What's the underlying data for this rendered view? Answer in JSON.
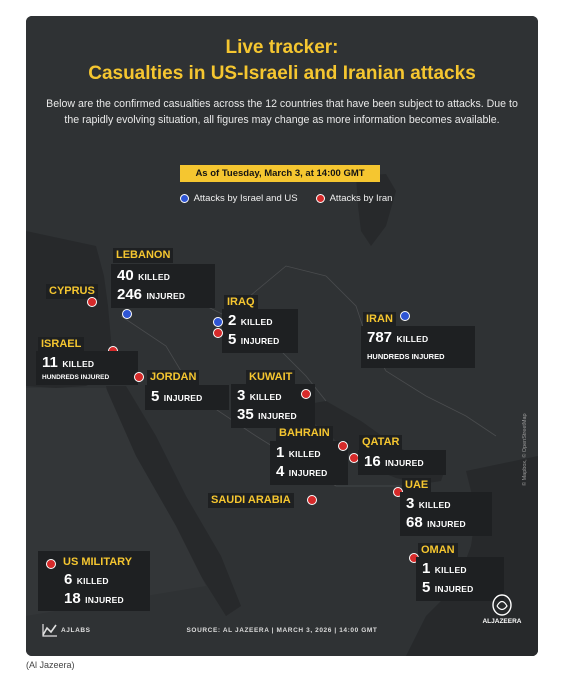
{
  "title_line1": "Live tracker:",
  "title_line2": "Casualties in US-Israeli and Iranian attacks",
  "subtitle": "Below are the confirmed casualties across the 12 countries that have been subject to attacks. Due to the rapidly evolving situation, all figures may change as more information becomes available.",
  "as_of": "As of Tuesday, March 3, at 14:00 GMT",
  "legend": {
    "israel_us": "Attacks by Israel and US",
    "iran": "Attacks by Iran"
  },
  "colors": {
    "israel_us": "#2f55d4",
    "iran": "#d62a2a",
    "accent": "#f5c630"
  },
  "countries": {
    "lebanon": {
      "name": "LEBANON",
      "killed": "40",
      "injured": "246",
      "killed_label": "KILLED",
      "injured_label": "INJURED"
    },
    "cyprus": {
      "name": "CYPRUS"
    },
    "iraq": {
      "name": "IRAQ",
      "killed": "2",
      "injured": "5",
      "killed_label": "KILLED",
      "injured_label": "INJURED"
    },
    "iran": {
      "name": "IRAN",
      "killed": "787",
      "killed_label": "KILLED",
      "injured_text": "HUNDREDS INJURED"
    },
    "israel": {
      "name": "ISRAEL",
      "killed": "11",
      "killed_label": "KILLED",
      "injured_text": "HUNDREDS INJURED"
    },
    "jordan": {
      "name": "JORDAN",
      "injured": "5",
      "injured_label": "INJURED"
    },
    "kuwait": {
      "name": "KUWAIT",
      "killed": "3",
      "injured": "35",
      "killed_label": "KILLED",
      "injured_label": "INJURED"
    },
    "bahrain": {
      "name": "BAHRAIN",
      "killed": "1",
      "injured": "4",
      "killed_label": "KILLED",
      "injured_label": "INJURED"
    },
    "qatar": {
      "name": "QATAR",
      "injured": "16",
      "injured_label": "INJURED"
    },
    "saudi": {
      "name": "SAUDI ARABIA"
    },
    "uae": {
      "name": "UAE",
      "killed": "3",
      "injured": "68",
      "killed_label": "KILLED",
      "injured_label": "INJURED"
    },
    "oman": {
      "name": "OMAN",
      "killed": "1",
      "injured": "5",
      "killed_label": "KILLED",
      "injured_label": "INJURED"
    },
    "us_military": {
      "name": "US MILITARY",
      "killed": "6",
      "injured": "18",
      "killed_label": "KILLED",
      "injured_label": "INJURED"
    }
  },
  "footer": {
    "brand": "AJLABS",
    "source": "SOURCE:  AL JAZEERA  |  MARCH 3, 2026  |  14:00 GMT",
    "logo_text": "ALJAZEERA",
    "map_credit": "© Mapbox, © OpenStreetMap"
  },
  "caption": "(Al Jazeera)"
}
